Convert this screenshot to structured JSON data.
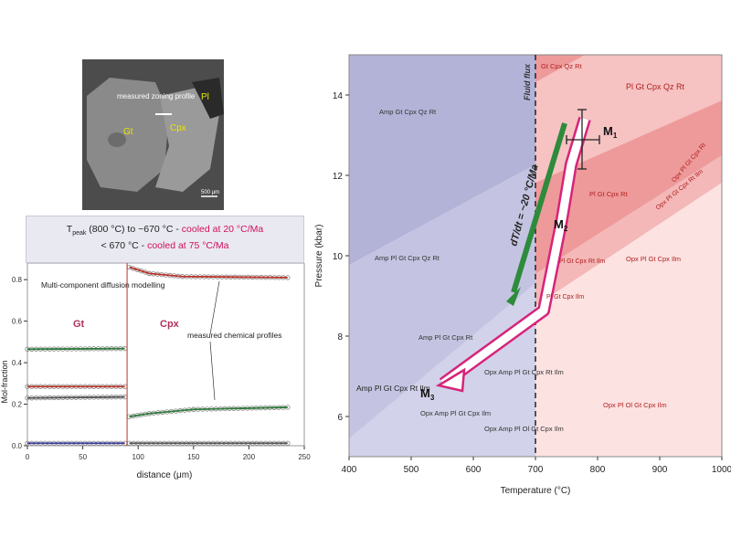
{
  "sem_image": {
    "labels": {
      "gt": "Gt",
      "cpx": "Cpx",
      "pl": "Pl",
      "profile": "measured zoning profile",
      "scale": "500 μm"
    }
  },
  "profile_header": {
    "line1_prefix": "T",
    "line1_sub": "peak",
    "line1_mid": " (800 °C) to ~670 °C - ",
    "line1_cool": "cooled at 20 °C/Ma",
    "line2_mid": "< 670 °C - ",
    "line2_cool": "cooled at 75 °C/Ma"
  },
  "profile_chart": {
    "xlabel": "distance (μm)",
    "ylabel": "Mol-fraction",
    "xticks": [
      "0",
      "50",
      "100",
      "150",
      "200",
      "250"
    ],
    "yticks": [
      "0.0",
      "0.2",
      "0.4",
      "0.6",
      "0.8"
    ],
    "xlim": [
      0,
      250
    ],
    "ylim": [
      0,
      0.88
    ],
    "annotations": {
      "model": "Multi-component diffusion modelling",
      "gt": "Gt",
      "cpx": "Cpx",
      "measured": "measured chemical profiles"
    },
    "colors": {
      "green": "#2f7a3c",
      "red": "#b9342a",
      "gray": "#555555",
      "blue": "#3a3a9a",
      "points": "#888888"
    }
  },
  "chart_data": {
    "type": "line",
    "x_boundary": 90,
    "series": [
      {
        "points": [
          [
            0,
            0.465
          ],
          [
            88,
            0.468
          ]
        ],
        "color": "#2f7a3c"
      },
      {
        "points": [
          [
            0,
            0.285
          ],
          [
            88,
            0.285
          ]
        ],
        "color": "#b9342a"
      },
      {
        "points": [
          [
            0,
            0.23
          ],
          [
            88,
            0.235
          ]
        ],
        "color": "#555555"
      },
      {
        "points": [
          [
            0,
            0.012
          ],
          [
            88,
            0.012
          ]
        ],
        "color": "#3a3a9a"
      },
      {
        "points": [
          [
            92,
            0.86
          ],
          [
            110,
            0.83
          ],
          [
            140,
            0.815
          ],
          [
            235,
            0.81
          ]
        ],
        "color": "#b9342a"
      },
      {
        "points": [
          [
            92,
            0.14
          ],
          [
            110,
            0.155
          ],
          [
            150,
            0.175
          ],
          [
            235,
            0.185
          ]
        ],
        "color": "#2f7a3c"
      },
      {
        "points": [
          [
            92,
            0.012
          ],
          [
            235,
            0.012
          ]
        ],
        "color": "#555555"
      }
    ]
  },
  "phase_diagram": {
    "xlabel": "Temperature (°C)",
    "ylabel": "Pressure (kbar)",
    "xticks": [
      "400",
      "500",
      "600",
      "700",
      "800",
      "900",
      "1000"
    ],
    "yticks": [
      "6",
      "8",
      "10",
      "12",
      "14"
    ],
    "xlim": [
      400,
      1000
    ],
    "ylim": [
      5,
      15
    ],
    "fluid_flux": "Fluid flux",
    "rate_label": "dT/dt = ~20 °C/Ma",
    "m1": "M",
    "m1_sub": "1",
    "m2": "M",
    "m2_sub": "2",
    "m3": "M",
    "m3_sub": "3",
    "fields": [
      "Amp Gt Cpx Qz Rt",
      "Amp Pl Gt Cpx Qz Rt",
      "Amp Pl Gt Cpx Rt",
      "Amp Pl Gt Cpx Rt Ilm",
      "Opx Amp Pl Gt Cpx Ilm",
      "Opx Amp Pl Ol Gt Cpx Ilm",
      "Opx Amp Pl Gt Cpx Rt Ilm",
      "Gt Cpx Qz Rt",
      "Pl Gt Cpx Qz Rt",
      "Pl Gt Cpx Rt",
      "Pl Gt Cpx Rt Ilm",
      "Pl Gt Cpx Ilm",
      "Opx Pl Gt Cpx Ilm",
      "Opx Pl Ol Gt Cpx Ilm",
      "Opx Pl Gt Cpx Rt",
      "Opx Pl Gt Cpx Rt Ilm"
    ],
    "colors": {
      "purple_dark": "#b3b3d8",
      "purple_light": "#d2d2ea",
      "pink": "#f6c2c2",
      "pink_dark": "#ee9a9a",
      "green": "#2e8b3c",
      "magenta": "#d6247a"
    }
  }
}
